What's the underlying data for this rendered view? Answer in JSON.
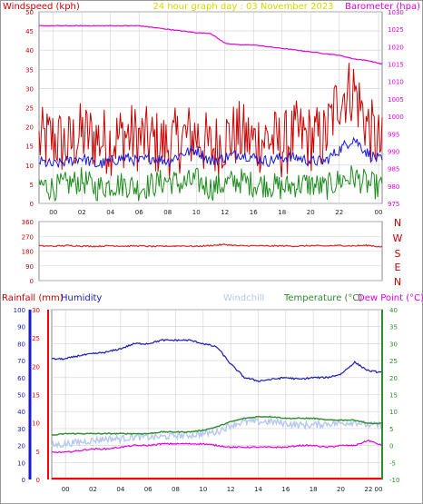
{
  "title": "24 hour graph day : 03 November 2023",
  "colors": {
    "windspeed": "#cc0000",
    "wind_avg": "#1a1ad6",
    "wind_low": "#1e8c1e",
    "barometer": "#e000e0",
    "direction": "#dd2222",
    "humidity": "#1a1ab4",
    "windchill": "#b4c8f0",
    "temperature": "#2e8b2e",
    "dewpoint": "#e000e0",
    "rainfall": "#ff0000",
    "title": "#d6d600",
    "pane_bg": "#ffffff",
    "grid": "#d0d0d0"
  },
  "wind_panel": {
    "left_label": "Windspeed (kph)",
    "right_label": "Barometer (hpa)"
  },
  "direction_panel": {
    "compass": [
      "N",
      "W",
      "S",
      "E",
      "N"
    ]
  },
  "bottom_panel": {
    "labels": {
      "rainfall": "Rainfall (mm)",
      "humidity": "Humidity",
      "windchill": "Windchill",
      "temperature": "Temperature (°C)",
      "dewpoint": "Dew Point (°C)"
    }
  },
  "chart_data": [
    {
      "type": "line",
      "panel": "wind",
      "title": "24 hour graph day : 03 November 2023",
      "ylabel": "Windspeed (kph)",
      "y2label": "Barometer (hpa)",
      "xticks": [
        "00",
        "02",
        "04",
        "06",
        "08",
        "10",
        "12",
        "16",
        "18",
        "20",
        "22",
        "00"
      ],
      "ylim": [
        0,
        50
      ],
      "yticks": [
        0,
        5,
        10,
        15,
        20,
        25,
        30,
        35,
        40,
        45,
        50
      ],
      "y2lim": [
        975,
        1030
      ],
      "y2ticks": [
        975,
        980,
        985,
        990,
        995,
        1000,
        1005,
        1010,
        1015,
        1020,
        1025,
        1030
      ],
      "series": [
        {
          "name": "Windspeed (kph)",
          "x": [
            0,
            1,
            2,
            3,
            4,
            5,
            6,
            7,
            8,
            9,
            10,
            11,
            12,
            13,
            14,
            15,
            16,
            17,
            18,
            19,
            20,
            21,
            22,
            23,
            24
          ],
          "values": [
            16,
            17,
            15,
            18,
            17,
            16,
            18,
            17,
            16,
            15,
            17,
            18,
            14,
            17,
            18,
            16,
            17,
            15,
            18,
            17,
            17,
            28,
            30,
            20,
            14
          ]
        },
        {
          "x": [
            0,
            1,
            2,
            3,
            4,
            5,
            6,
            7,
            8,
            9,
            10,
            11,
            12,
            13,
            14,
            15,
            16,
            17,
            18,
            19,
            20,
            21,
            22,
            23,
            24
          ],
          "values": [
            11,
            10,
            11,
            12,
            10,
            11,
            12,
            11,
            12,
            11,
            13,
            14,
            11,
            12,
            13,
            12,
            11,
            12,
            12,
            11,
            11,
            14,
            17,
            13,
            11
          ]
        },
        {
          "x": [
            0,
            1,
            2,
            3,
            4,
            5,
            6,
            7,
            8,
            9,
            10,
            11,
            12,
            13,
            14,
            15,
            16,
            17,
            18,
            19,
            20,
            21,
            22,
            23,
            24
          ],
          "values": [
            5,
            4,
            5,
            6,
            4,
            5,
            5,
            4,
            5,
            6,
            5,
            6,
            4,
            5,
            6,
            5,
            5,
            4,
            5,
            5,
            4,
            6,
            7,
            5,
            4
          ]
        },
        {
          "name": "Barometer (hpa)",
          "x": [
            0,
            1,
            2,
            3,
            4,
            5,
            6,
            7,
            8,
            9,
            10,
            11,
            12,
            13,
            14,
            15,
            16,
            17,
            18,
            19,
            20,
            21,
            22,
            23,
            24
          ],
          "values": [
            1026,
            1026,
            1026,
            1026,
            1026,
            1026,
            1026,
            1026,
            1025.5,
            1025,
            1024.5,
            1024,
            1023.8,
            1021,
            1020.5,
            1020.5,
            1020,
            1019.5,
            1019,
            1018.5,
            1018,
            1017.5,
            1016.5,
            1016,
            1015
          ]
        }
      ]
    },
    {
      "type": "line",
      "panel": "direction",
      "yticks": [
        0,
        90,
        180,
        270,
        360
      ],
      "ylim": [
        0,
        360
      ],
      "series": [
        {
          "x": [
            0,
            1,
            2,
            3,
            4,
            5,
            6,
            7,
            8,
            9,
            10,
            11,
            12,
            13,
            14,
            15,
            16,
            17,
            18,
            19,
            20,
            21,
            22,
            23,
            24
          ],
          "values": [
            212,
            210,
            214,
            211,
            209,
            213,
            210,
            212,
            208,
            210,
            212,
            209,
            214,
            220,
            212,
            213,
            211,
            212,
            210,
            213,
            211,
            214,
            212,
            215,
            205
          ]
        }
      ]
    },
    {
      "type": "line",
      "panel": "weather",
      "xticks": [
        "00",
        "02",
        "04",
        "06",
        "08",
        "10",
        "12",
        "14",
        "16",
        "18",
        "20",
        "22",
        "00"
      ],
      "rain_ylim": [
        0,
        30
      ],
      "rain_yticks": [
        0,
        5,
        10,
        15,
        20,
        25,
        30
      ],
      "hum_ylim": [
        0,
        100
      ],
      "hum_yticks": [
        0,
        10,
        20,
        30,
        40,
        50,
        60,
        70,
        80,
        90,
        100
      ],
      "temp_ylim": [
        -10,
        40
      ],
      "temp_yticks": [
        -10,
        -5,
        0,
        5,
        10,
        15,
        20,
        25,
        30,
        35,
        40
      ],
      "series": [
        {
          "name": "Humidity",
          "x": [
            0,
            1,
            2,
            3,
            4,
            5,
            6,
            7,
            8,
            9,
            10,
            11,
            12,
            13,
            14,
            15,
            16,
            17,
            18,
            19,
            20,
            21,
            22,
            23,
            24
          ],
          "values": [
            71,
            71,
            73,
            74,
            75,
            77,
            80,
            80,
            82,
            82,
            82,
            80,
            78,
            68,
            60,
            58,
            59,
            60,
            59,
            60,
            60,
            62,
            69,
            64,
            63
          ]
        },
        {
          "name": "Windchill",
          "x": [
            0,
            1,
            2,
            3,
            4,
            5,
            6,
            7,
            8,
            9,
            10,
            11,
            12,
            13,
            14,
            15,
            16,
            17,
            18,
            19,
            20,
            21,
            22,
            23,
            24
          ],
          "values": [
            0,
            0.5,
            1,
            1.5,
            2,
            2,
            2.5,
            2.5,
            2.5,
            3,
            3,
            3.5,
            4,
            6,
            7,
            7,
            7,
            6.5,
            6,
            6,
            6.5,
            6.5,
            7,
            6,
            6
          ]
        },
        {
          "name": "Temperature (°C)",
          "x": [
            0,
            1,
            2,
            3,
            4,
            5,
            6,
            7,
            8,
            9,
            10,
            11,
            12,
            13,
            14,
            15,
            16,
            17,
            18,
            19,
            20,
            21,
            22,
            23,
            24
          ],
          "values": [
            3,
            3.5,
            3.5,
            3.5,
            3.5,
            3.5,
            3.5,
            3.5,
            4,
            4,
            4,
            4.5,
            5.5,
            7,
            8,
            8.5,
            8.5,
            8,
            8,
            8,
            7.5,
            7.5,
            7.5,
            6.5,
            6.5
          ]
        },
        {
          "name": "Dew Point (°C)",
          "x": [
            0,
            1,
            2,
            3,
            4,
            5,
            6,
            7,
            8,
            9,
            10,
            11,
            12,
            13,
            14,
            15,
            16,
            17,
            18,
            19,
            20,
            21,
            22,
            23,
            24
          ],
          "values": [
            -2,
            -2,
            -1.5,
            -1,
            -1,
            -0.5,
            0,
            0,
            0.5,
            0.5,
            0.5,
            0.5,
            0,
            -0.5,
            -0.5,
            -0.5,
            -0.5,
            -0.5,
            0,
            0,
            -0.5,
            0,
            0,
            1.5,
            0
          ]
        },
        {
          "name": "Rainfall (mm)",
          "x": [
            0,
            24
          ],
          "values": [
            0,
            0
          ]
        }
      ]
    }
  ]
}
